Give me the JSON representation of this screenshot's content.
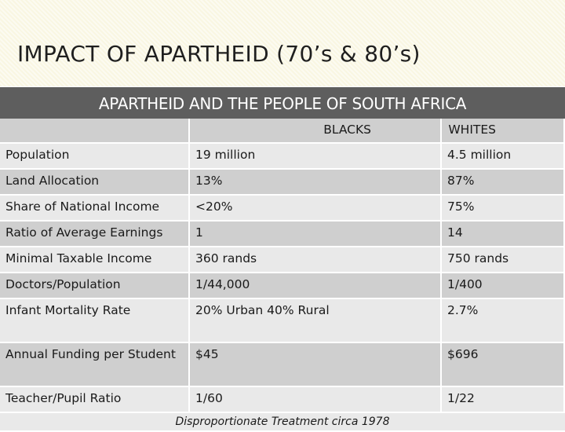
{
  "slide": {
    "title": "IMPACT OF APARTHEID (70’s & 80’s)"
  },
  "table": {
    "caption": "APARTHEID AND THE PEOPLE OF SOUTH AFRICA",
    "columns": [
      "",
      "BLACKS",
      "WHITES"
    ],
    "rows": [
      {
        "label": "Population",
        "blacks": "19 million",
        "whites": "4.5 million"
      },
      {
        "label": "Land Allocation",
        "blacks": "13%",
        "whites": "87%"
      },
      {
        "label": "Share of National Income",
        "blacks": "<20%",
        "whites": "75%"
      },
      {
        "label": "Ratio of Average Earnings",
        "blacks": "1",
        "whites": "14"
      },
      {
        "label": "Minimal Taxable Income",
        "blacks": "360 rands",
        "whites": "750 rands"
      },
      {
        "label": "Doctors/Population",
        "blacks": "1/44,000",
        "whites": "1/400"
      },
      {
        "label": "Infant Mortality Rate",
        "blacks": "20% Urban 40% Rural",
        "whites": "2.7%"
      },
      {
        "label": "Annual Funding per Student",
        "blacks": "$45",
        "whites": "$696"
      },
      {
        "label": "Teacher/Pupil Ratio",
        "blacks": "1/60",
        "whites": "1/22"
      }
    ],
    "footer": "Disproportionate Treatment circa 1978"
  },
  "colors": {
    "header_bg": "#5e5e5e",
    "row_dark": "#cfcfcf",
    "row_light": "#e9e9e9",
    "title_band": "#f9f6e2"
  }
}
